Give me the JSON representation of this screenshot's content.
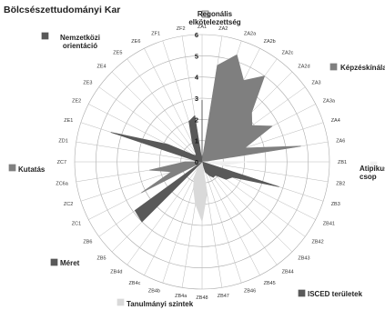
{
  "chart_data": {
    "type": "radar",
    "title": "Bölcsészettudományi Kar",
    "rmax": 6,
    "ticks": [
      0,
      1,
      2,
      3,
      4,
      5,
      6
    ],
    "grid": true,
    "axes": [
      "ZA1",
      "ZA2",
      "ZA2a",
      "ZA2b",
      "ZA2c",
      "ZA2d",
      "ZA3",
      "ZA3a",
      "ZA4",
      "ZA6",
      "ZB1",
      "ZB2",
      "ZB3",
      "ZB41",
      "ZB42",
      "ZB43",
      "ZB44",
      "ZB45",
      "ZB46",
      "ZB47",
      "ZB48",
      "ZB4a",
      "ZB4b",
      "ZB4c",
      "ZB4d",
      "ZB5",
      "ZB6",
      "ZC1",
      "ZC2",
      "ZC6a",
      "ZC7",
      "ZD1",
      "ZE1",
      "ZE2",
      "ZE3",
      "ZE4",
      "ZE5",
      "ZE6",
      "ZF1",
      "ZF2"
    ],
    "series": [
      {
        "name": "Regonális elkötelezettség",
        "color": "#d9d9d9",
        "stroke": "#444444",
        "indices": [
          0
        ],
        "values": [
          2.9
        ]
      },
      {
        "name": "Képzéskínálat",
        "color": "#7f7f7f",
        "stroke": "#7f7f7f",
        "indices": [
          1,
          2,
          3,
          4,
          5,
          6,
          7,
          8,
          9
        ],
        "values": [
          4.6,
          5.3,
          4.3,
          5.0,
          3.3,
          2.9,
          3.7,
          2.1,
          4.7
        ]
      },
      {
        "name": "Atipikus csoportok",
        "color": "#f0f0f0",
        "stroke": "#f0f0f0",
        "indices": [
          10,
          11
        ],
        "values": [
          2.1,
          1.0
        ]
      },
      {
        "name": "ISCED területek",
        "color": "#595959",
        "stroke": "#595959",
        "indices": [
          12,
          13,
          14,
          15,
          16,
          17,
          18
        ],
        "values": [
          3.8,
          1.6,
          1.4,
          0.9,
          0.9,
          0.7,
          0.5
        ]
      },
      {
        "name": "Tanulmányi szintek",
        "color": "#d9d9d9",
        "stroke": "#d9d9d9",
        "indices": [
          19,
          20,
          21,
          22,
          23,
          24
        ],
        "values": [
          1.5,
          2.8,
          2.0,
          1.3,
          0.8,
          0.3
        ]
      },
      {
        "name": "Méret",
        "color": "#595959",
        "stroke": "#595959",
        "indices": [
          25,
          26
        ],
        "values": [
          4.0,
          3.9
        ]
      },
      {
        "name": "Kutatás",
        "color": "#808080",
        "stroke": "#808080",
        "indices": [
          27,
          28,
          29,
          30
        ],
        "values": [
          3.2,
          1.5,
          2.5,
          0.8
        ]
      },
      {
        "name": "Nemzetközi orientáció",
        "color": "#595959",
        "stroke": "#595959",
        "indices": [
          31,
          32,
          33,
          34,
          35,
          36,
          37,
          38,
          39
        ],
        "values": [
          0.3,
          4.5,
          1.8,
          0.6,
          0.4,
          0.5,
          1.0,
          2.0,
          2.2
        ]
      }
    ],
    "legend": [
      {
        "lines": [
          "Regonális",
          "elkötelezettség"
        ],
        "color": "#d9d9d9",
        "border": "#555555"
      },
      {
        "lines": [
          "Képzéskínálat"
        ],
        "color": "#7f7f7f",
        "border": "none"
      },
      {
        "lines": [
          "Atipikus",
          "csop"
        ],
        "color": "#f0f0f0",
        "border": "none"
      },
      {
        "lines": [
          "ISCED területek"
        ],
        "color": "#595959",
        "border": "none"
      },
      {
        "lines": [
          "Tanulmányi szintek"
        ],
        "color": "#d9d9d9",
        "border": "none"
      },
      {
        "lines": [
          "Méret"
        ],
        "color": "#595959",
        "border": "none"
      },
      {
        "lines": [
          "Kutatás"
        ],
        "color": "#808080",
        "border": "none"
      },
      {
        "lines": [
          "Nemzetközi",
          "orientáció"
        ],
        "color": "#595959",
        "border": "none"
      }
    ]
  }
}
